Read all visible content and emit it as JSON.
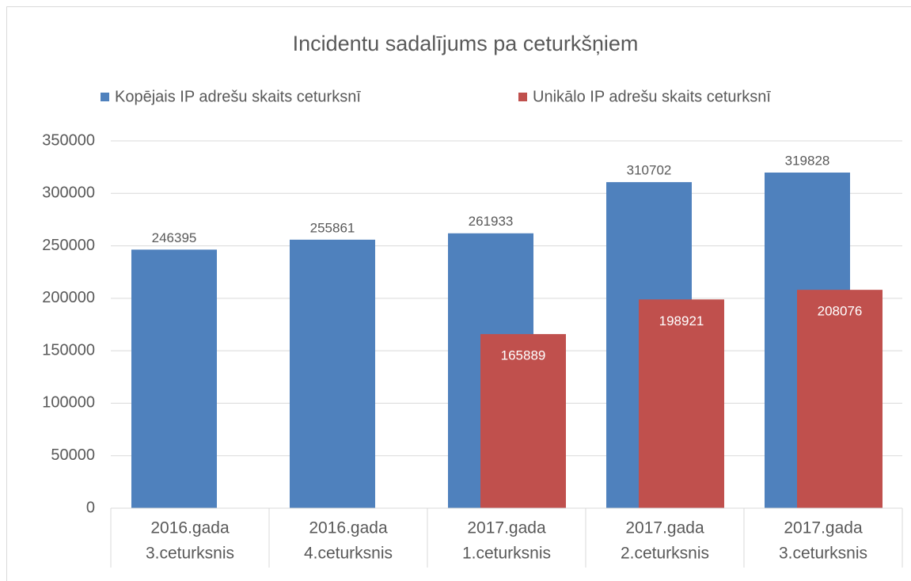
{
  "chart_data": {
    "type": "bar",
    "title": "Incidentu sadalījums pa ceturkšņiem",
    "categories": [
      [
        "2016.gada",
        "3.ceturksnis"
      ],
      [
        "2016.gada",
        "4.ceturksnis"
      ],
      [
        "2017.gada",
        "1.ceturksnis"
      ],
      [
        "2017.gada",
        "2.ceturksnis"
      ],
      [
        "2017.gada",
        "3.ceturksnis"
      ]
    ],
    "series": [
      {
        "name": "Kopējais IP adrešu skaits ceturksnī",
        "color": "#4f81bd",
        "values": [
          246395,
          255861,
          261933,
          310702,
          319828
        ]
      },
      {
        "name": "Unikālo IP adrešu skaits ceturksnī",
        "color": "#c0504d",
        "values": [
          null,
          null,
          165889,
          198921,
          208076
        ]
      }
    ],
    "ylim": [
      0,
      350000
    ],
    "yticks": [
      0,
      50000,
      100000,
      150000,
      200000,
      250000,
      300000,
      350000
    ],
    "grid": true,
    "legend": "top"
  }
}
